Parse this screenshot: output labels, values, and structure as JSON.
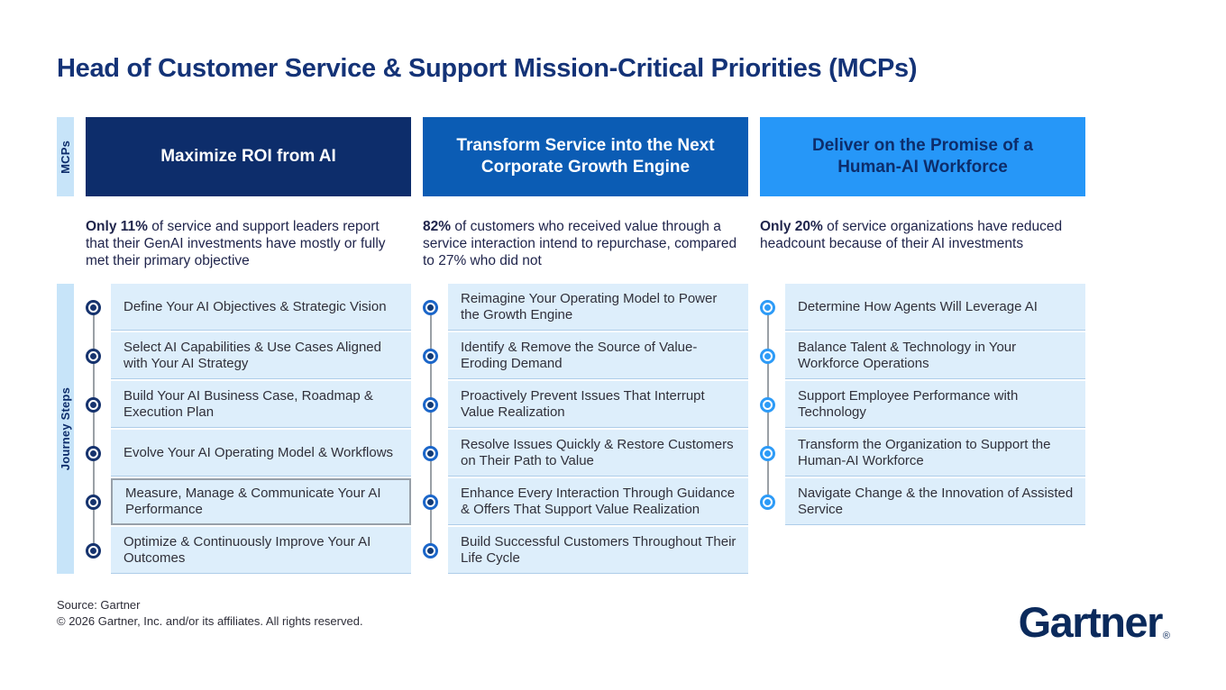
{
  "title": "Head of Customer Service & Support Mission-Critical Priorities (MCPs)",
  "side_labels": {
    "mcps": "MCPs",
    "journey": "Journey Steps"
  },
  "colors": {
    "title_text": "#143377",
    "side_strip_bg": "#c7e4f9",
    "step_row_bg": "#ddeefb",
    "rail_gray": "#9aa0a6",
    "highlight_border": "#97a0a9"
  },
  "columns": [
    {
      "header": "Maximize ROI from AI",
      "header_bg": "#0d2d6b",
      "header_text": "#ffffff",
      "stat_bold": "Only 11%",
      "stat_rest": " of service and support leaders report that their GenAI investments have mostly or fully met their primary objective",
      "bullet_ring": "#16336e",
      "bullet_dot": "#16336e",
      "steps": [
        {
          "label": "Define Your AI Objectives & Strategic Vision"
        },
        {
          "label": "Select AI Capabilities & Use Cases Aligned with Your AI Strategy"
        },
        {
          "label": "Build Your AI Business Case, Roadmap & Execution Plan"
        },
        {
          "label": "Evolve Your AI Operating Model & Workflows"
        },
        {
          "label": "Measure, Manage & Communicate Your AI Performance",
          "highlight": true
        },
        {
          "label": "Optimize & Continuously Improve Your AI Outcomes"
        }
      ]
    },
    {
      "header": "Transform Service into the Next Corporate Growth Engine",
      "header_bg": "#0b5cb4",
      "header_text": "#ffffff",
      "stat_bold": "82%",
      "stat_rest": " of customers who received value through a service interaction intend to repurchase, compared to 27% who did not",
      "bullet_ring": "#1b66c9",
      "bullet_dot": "#123a75",
      "steps": [
        {
          "label": "Reimagine Your Operating Model to Power the Growth Engine"
        },
        {
          "label": "Identify & Remove the Source of Value-Eroding Demand"
        },
        {
          "label": "Proactively Prevent Issues That Interrupt Value Realization"
        },
        {
          "label": "Resolve Issues Quickly & Restore Customers on Their Path to Value"
        },
        {
          "label": "Enhance Every Interaction Through Guidance & Offers That Support Value Realization"
        },
        {
          "label": "Build Successful Customers Throughout Their Life Cycle"
        }
      ]
    },
    {
      "header": "Deliver on the Promise of a Human-AI Workforce",
      "header_bg": "#2697f8",
      "header_text": "#0d2d6b",
      "stat_bold": "Only 20%",
      "stat_rest": " of service organizations have reduced headcount because of their AI investments",
      "bullet_ring": "#2d9bf7",
      "bullet_dot": "#2d9bf7",
      "steps": [
        {
          "label": "Determine How Agents Will Leverage AI"
        },
        {
          "label": "Balance Talent & Technology in Your Workforce Operations"
        },
        {
          "label": "Support Employee Performance with Technology"
        },
        {
          "label": "Transform the Organization to Support the Human-AI Workforce"
        },
        {
          "label": "Navigate Change & the Innovation of Assisted Service"
        }
      ]
    }
  ],
  "footer": {
    "source": "Source: Gartner",
    "copyright": "© 2026 Gartner, Inc. and/or its affiliates. All rights reserved."
  },
  "logo": {
    "text": "Gartner",
    "registered": "®"
  }
}
